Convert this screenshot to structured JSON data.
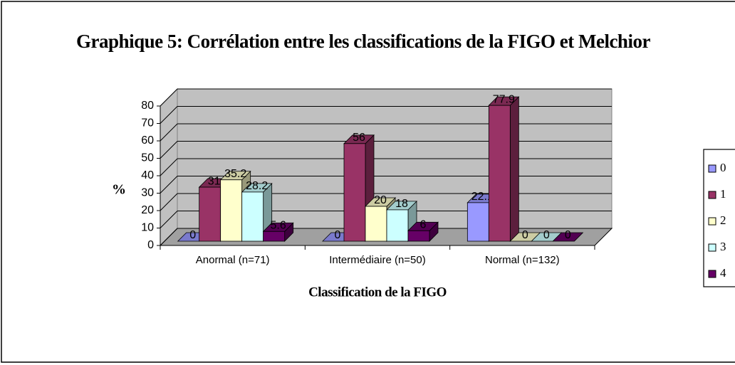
{
  "chart_data": {
    "type": "bar3d",
    "title": "Graphique 5: Corrélation entre les classifications de la FIGO et Melchior",
    "x_label": "Classification de la FIGO",
    "y_label": "%",
    "categories": [
      "Anormal (n=71)",
      "Intermédiaire (n=50)",
      "Normal (n=132)"
    ],
    "series": [
      {
        "name": "0",
        "color": "#9999ff",
        "values": [
          0,
          0,
          22.1
        ]
      },
      {
        "name": "1",
        "color": "#993366",
        "values": [
          31,
          56,
          77.9
        ]
      },
      {
        "name": "2",
        "color": "#ffffcc",
        "values": [
          35.2,
          20,
          0
        ]
      },
      {
        "name": "3",
        "color": "#ccffff",
        "values": [
          28.2,
          18,
          0
        ]
      },
      {
        "name": "4",
        "color": "#660066",
        "values": [
          5.6,
          6,
          0
        ]
      }
    ],
    "ylim": [
      0,
      80
    ],
    "yticks": [
      0,
      10,
      20,
      30,
      40,
      50,
      60,
      70,
      80
    ],
    "grid": true,
    "legend": "right"
  }
}
